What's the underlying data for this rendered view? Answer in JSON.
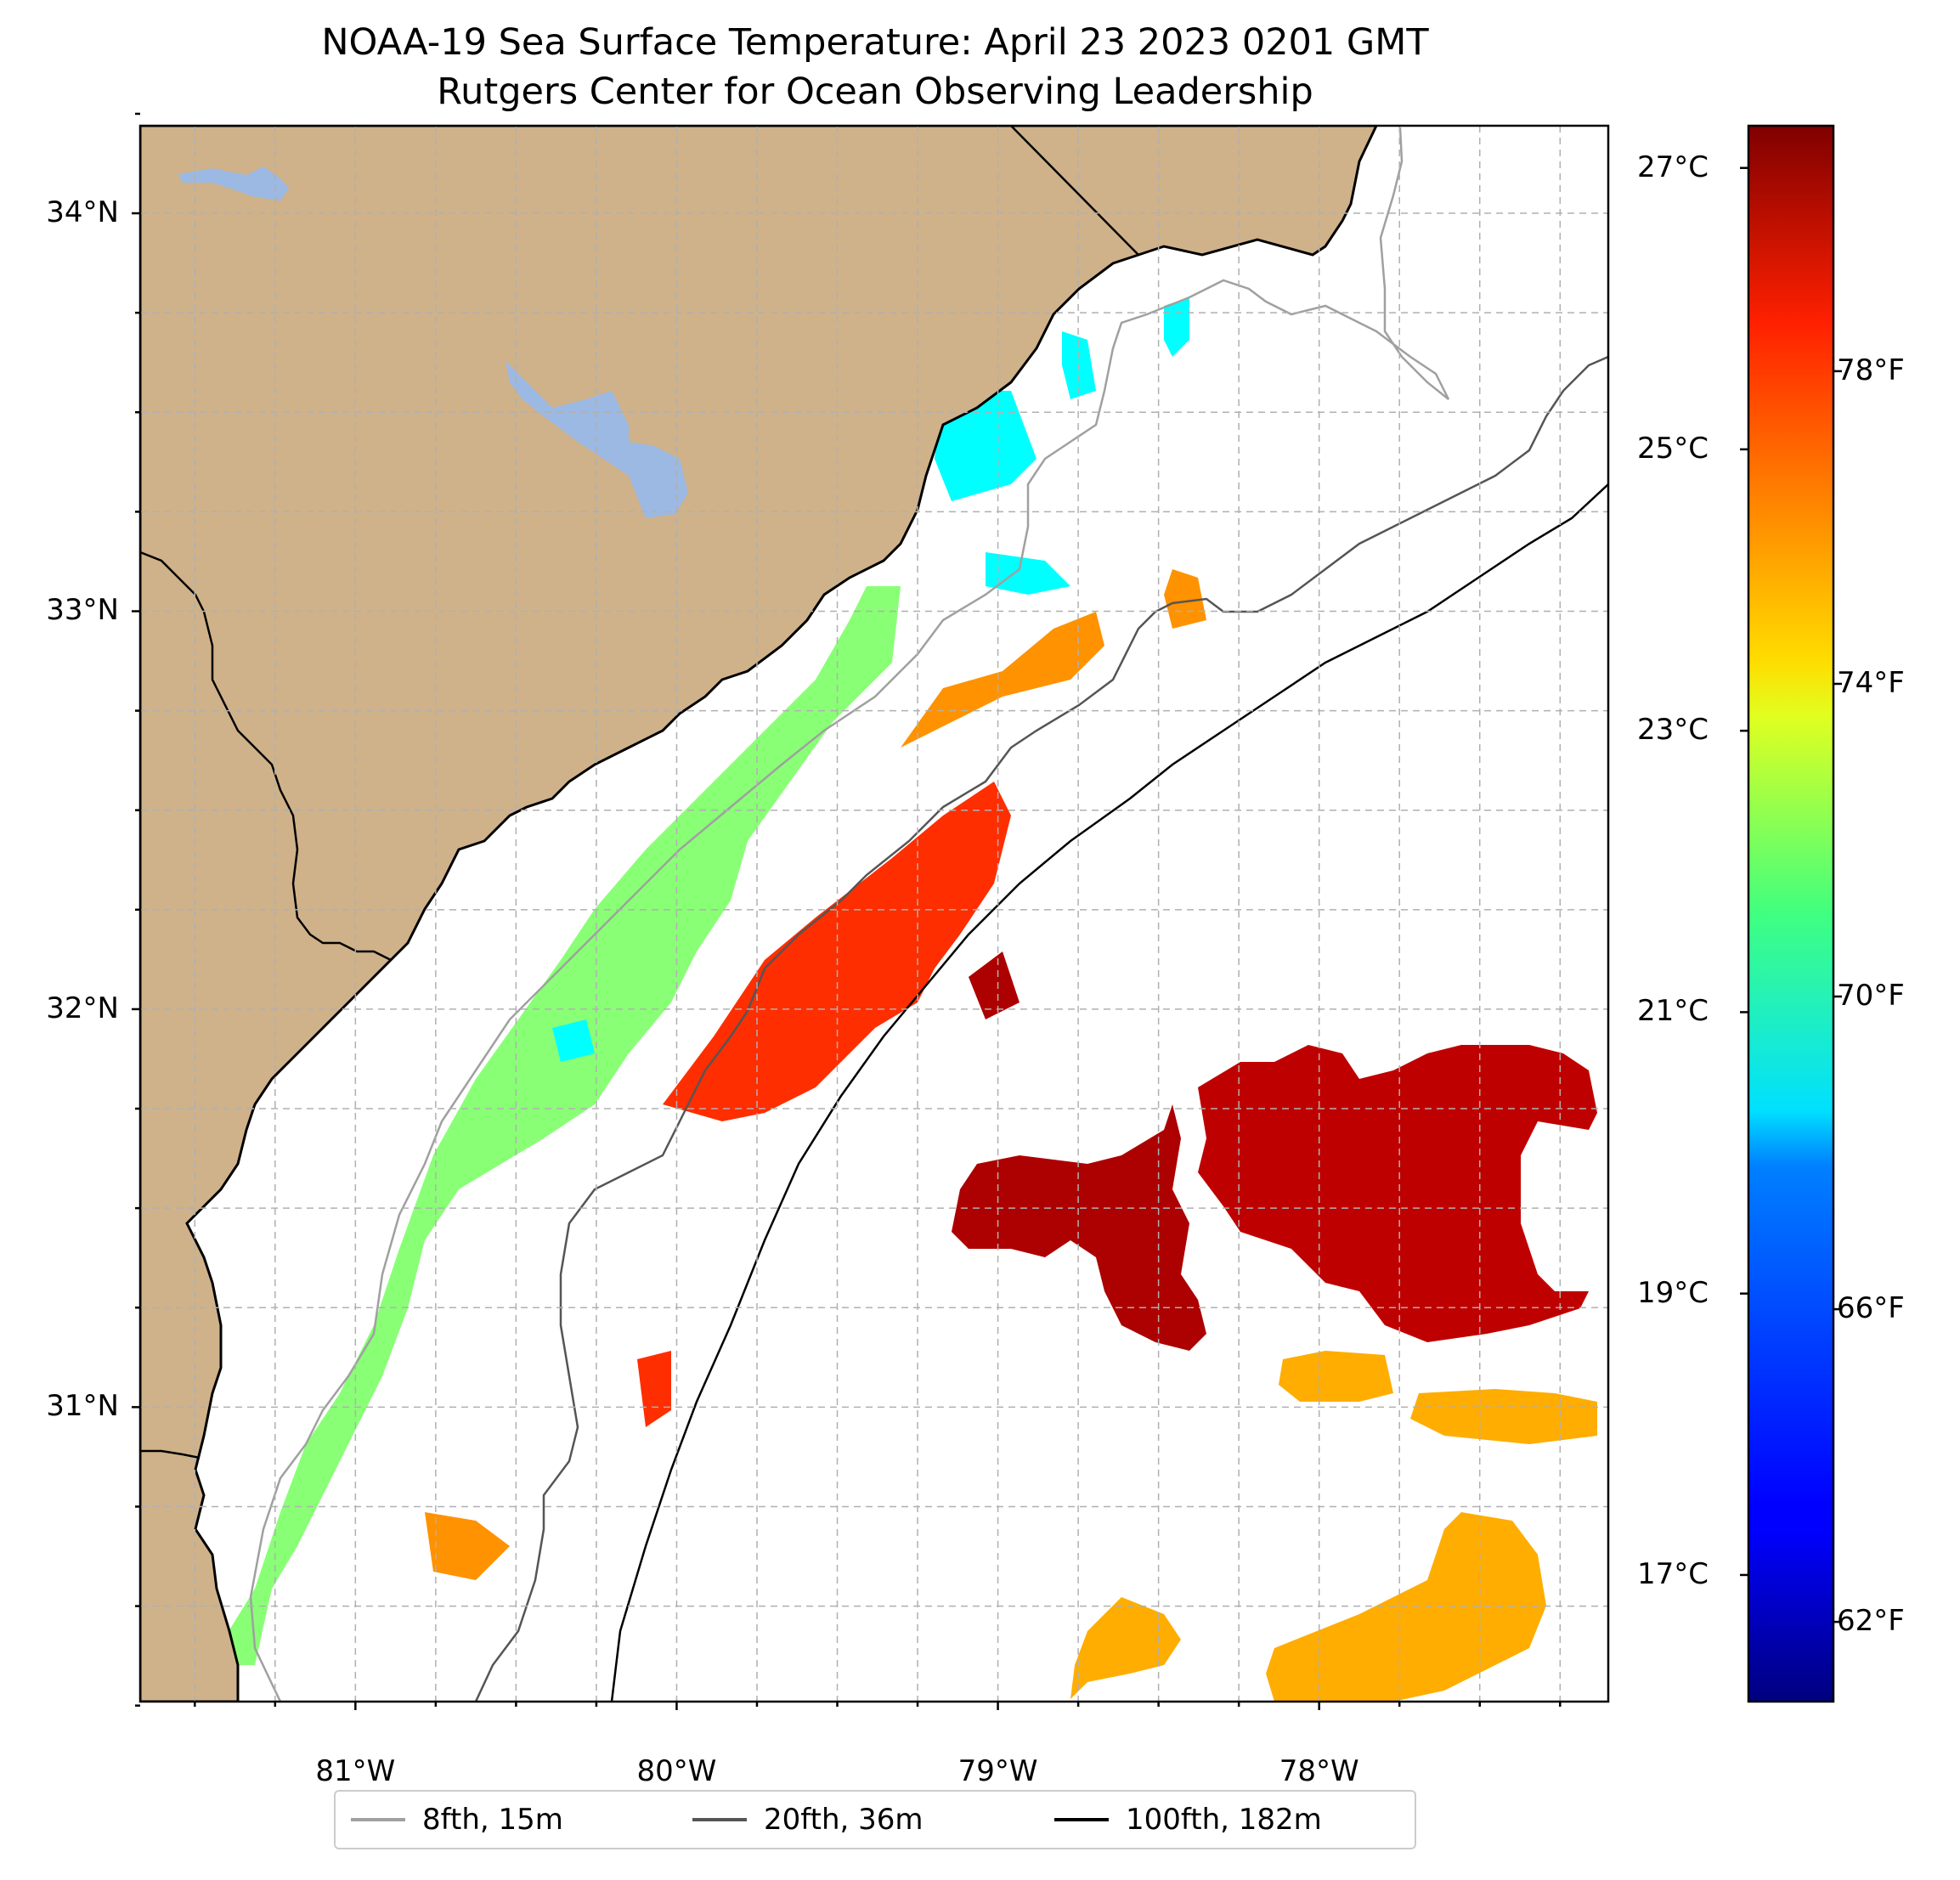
{
  "title_line1": "NOAA-19 Sea Surface Temperature: April 23 2023 0201 GMT",
  "title_line2": "Rutgers Center for Ocean Observing Leadership",
  "map": {
    "extent": {
      "lon_min": -81.67,
      "lon_max": -77.1,
      "lat_min": 30.26,
      "lat_max": 34.22
    },
    "land_color": "#cfb28a",
    "water_color": "#9bb9e3",
    "gridlines": "dashed"
  },
  "axes": {
    "lon_ticks": [
      {
        "value": -81,
        "label": "81°W"
      },
      {
        "value": -80,
        "label": "80°W"
      },
      {
        "value": -79,
        "label": "79°W"
      },
      {
        "value": -78,
        "label": "78°W"
      }
    ],
    "lat_ticks": [
      {
        "value": 34,
        "label": "34°N"
      },
      {
        "value": 33,
        "label": "33°N"
      },
      {
        "value": 32,
        "label": "32°N"
      },
      {
        "value": 31,
        "label": "31°N"
      }
    ]
  },
  "colorbar": {
    "colormap": "jet",
    "vmin_c": 16.1,
    "vmax_c": 27.3,
    "celsius_ticks": [
      {
        "value": 17,
        "label": "17°C"
      },
      {
        "value": 19,
        "label": "19°C"
      },
      {
        "value": 21,
        "label": "21°C"
      },
      {
        "value": 23,
        "label": "23°C"
      },
      {
        "value": 25,
        "label": "25°C"
      },
      {
        "value": 27,
        "label": "27°C"
      }
    ],
    "fahrenheit_ticks": [
      {
        "value": 62,
        "label": "62°F"
      },
      {
        "value": 66,
        "label": "66°F"
      },
      {
        "value": 70,
        "label": "70°F"
      },
      {
        "value": 74,
        "label": "74°F"
      },
      {
        "value": 78,
        "label": "78°F"
      }
    ]
  },
  "legend": [
    {
      "label": "8fth, 15m",
      "color": "#a0a0a0"
    },
    {
      "label": "20fth, 36m",
      "color": "#555555"
    },
    {
      "label": "100fth, 182m",
      "color": "#000000"
    }
  ],
  "sst_regions": [
    {
      "name": "nearshore-band",
      "temp_c": 21.8
    },
    {
      "name": "nearshore-cool-patches",
      "temp_c": 20.3
    },
    {
      "name": "shelf-warm-band",
      "temp_c": 24.3
    },
    {
      "name": "midshelf-front",
      "temp_c": 25.4
    },
    {
      "name": "gulf-stream-west",
      "temp_c": 26.8
    },
    {
      "name": "gulf-stream-east",
      "temp_c": 26.6
    },
    {
      "name": "offshore-south",
      "temp_c": 24.0
    }
  ]
}
